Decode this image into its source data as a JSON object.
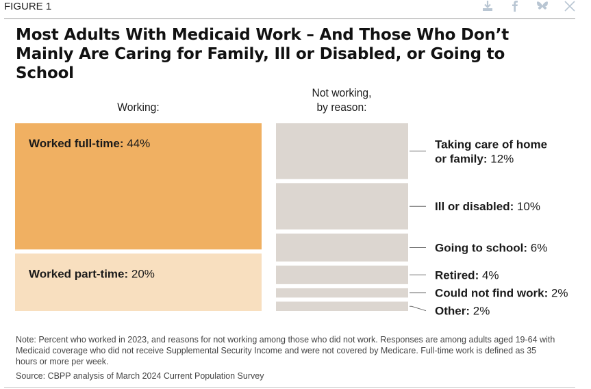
{
  "figure_label": "FIGURE 1",
  "share_icons": [
    "download-icon",
    "facebook-icon",
    "bluesky-icon",
    "x-icon"
  ],
  "colors": {
    "full_time": "#f0b062",
    "part_time": "#f8dfbf",
    "not_working": "#dcd6d0",
    "leader": "#6b6b6b"
  },
  "chart_data": {
    "type": "treemap-bar",
    "title": "Most Adults With Medicaid Work – And Those Who Don’t Mainly Are Caring for Family, Ill or Disabled, or Going to School",
    "groups": [
      {
        "name": "Working:",
        "segments": [
          {
            "label": "Worked full-time:",
            "value_text": "44%",
            "value": 44
          },
          {
            "label": "Worked part-time:",
            "value_text": "20%",
            "value": 20
          }
        ]
      },
      {
        "name": "Not working, by reason:",
        "name_lines": [
          "Not working,",
          "by reason:"
        ],
        "segments": [
          {
            "label": "Taking care of home",
            "label_line2": "or family:",
            "value_text": "12%",
            "value": 12
          },
          {
            "label": "Ill or disabled:",
            "value_text": "10%",
            "value": 10
          },
          {
            "label": "Going to school:",
            "value_text": "6%",
            "value": 6
          },
          {
            "label": "Retired:",
            "value_text": "4%",
            "value": 4
          },
          {
            "label": "Could not find work:",
            "value_text": "2%",
            "value": 2
          },
          {
            "label": "Other:",
            "value_text": "2%",
            "value": 2
          }
        ]
      }
    ]
  },
  "note": "Note: Percent who worked in 2023, and reasons for not working among those who did not work. Responses are among adults aged 19-64 with Medicaid coverage who did not receive Supplemental Security Income and were not covered by Medicare. Full-time work is defined as 35 hours or more per week.",
  "source": "Source: CBPP analysis of March 2024 Current Population Survey"
}
